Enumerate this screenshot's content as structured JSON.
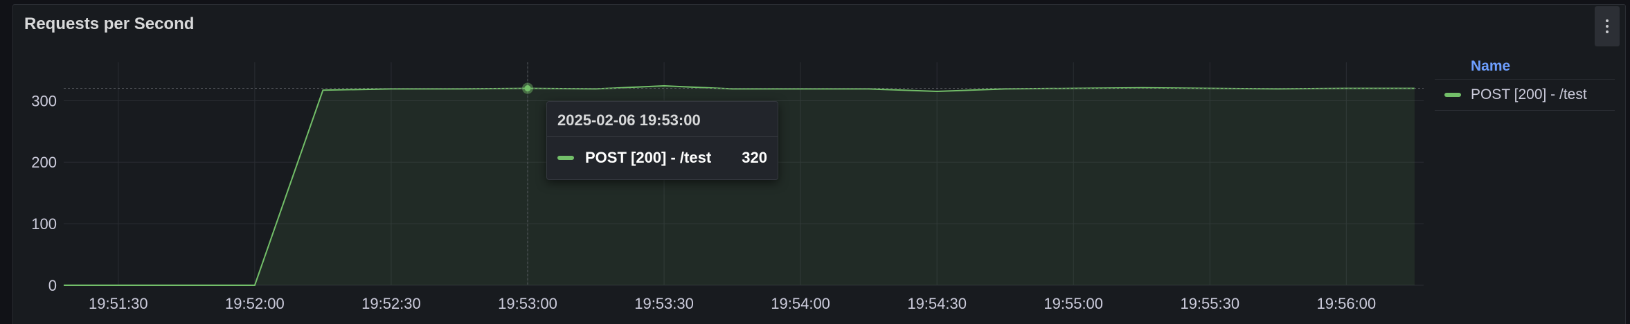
{
  "panel": {
    "title": "Requests per Second",
    "menu_icon": "kebab-menu-icon"
  },
  "legend": {
    "header": "Name",
    "items": [
      {
        "label": "POST [200] - /test",
        "color": "#73bf69"
      }
    ]
  },
  "tooltip": {
    "time": "2025-02-06 19:53:00",
    "series": "POST [200] - /test",
    "value": "320",
    "color": "#73bf69"
  },
  "chart_data": {
    "type": "area",
    "title": "Requests per Second",
    "y_ticks": [
      0,
      100,
      200,
      300
    ],
    "ylim": [
      0,
      360
    ],
    "x_tick_labels": [
      "19:51:30",
      "19:52:00",
      "19:52:30",
      "19:53:00",
      "19:53:30",
      "19:54:00",
      "19:54:30",
      "19:55:00",
      "19:55:30",
      "19:56:00"
    ],
    "x_tick_seconds": [
      90,
      120,
      150,
      180,
      210,
      240,
      270,
      300,
      330,
      360
    ],
    "x_range_seconds": [
      78,
      377
    ],
    "grid": true,
    "legend_placement": "right",
    "series": [
      {
        "name": "POST [200] - /test",
        "color": "#73bf69",
        "x_seconds": [
          78,
          120,
          135,
          150,
          165,
          180,
          195,
          210,
          225,
          240,
          255,
          270,
          285,
          300,
          315,
          330,
          345,
          360,
          375
        ],
        "values": [
          0,
          0,
          317,
          319,
          319,
          320,
          319,
          324,
          319,
          319,
          319,
          315,
          319,
          320,
          321,
          320,
          319,
          320,
          320
        ]
      }
    ],
    "hover_x_seconds": 180,
    "hover_value": 320
  }
}
